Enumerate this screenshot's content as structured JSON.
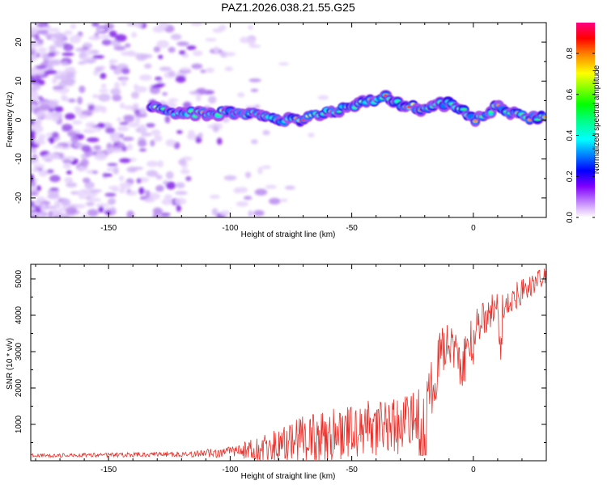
{
  "title": "PAZ1.2026.038.21.55.G25",
  "chart_data": [
    {
      "type": "heatmap",
      "name": "spectrogram",
      "xlabel": "Height of straight line (km)",
      "ylabel": "Frequency (Hz)",
      "xlim": [
        -182,
        30
      ],
      "ylim": [
        -25,
        25
      ],
      "xticks": [
        "-150",
        "-100",
        "-50",
        "0"
      ],
      "xtick_values": [
        -150,
        -100,
        -50,
        0
      ],
      "yticks": [
        "-20",
        "-10",
        "0",
        "10",
        "20"
      ],
      "ytick_values": [
        -20,
        -10,
        0,
        10,
        20
      ],
      "colorbar": {
        "label": "Normalized spectral amplitude",
        "range": [
          0,
          0.95
        ],
        "ticks": [
          "0.0",
          "0.2",
          "0.4",
          "0.6",
          "0.8"
        ],
        "tick_values": [
          0,
          0.2,
          0.4,
          0.6,
          0.8
        ]
      },
      "ridge_frequency": {
        "x": [
          -130,
          -120,
          -110,
          -100,
          -90,
          -80,
          -70,
          -60,
          -50,
          -40,
          -35,
          -30,
          -20,
          -15,
          -10,
          -5,
          0,
          5,
          10,
          15,
          20,
          25,
          30
        ],
        "y": [
          3,
          2,
          1.5,
          2,
          1.5,
          0,
          0.5,
          2,
          3.5,
          5,
          6,
          4,
          3,
          4,
          4,
          3,
          0,
          1,
          4,
          2,
          1,
          0.5,
          0.5
        ]
      }
    },
    {
      "type": "line",
      "name": "snr",
      "xlabel": "Height of straight line (km)",
      "ylabel": "SNR (10 * v/v)",
      "xlim": [
        -182,
        30
      ],
      "ylim": [
        0,
        5400
      ],
      "xticks": [
        "-150",
        "-100",
        "-50",
        "0"
      ],
      "xtick_values": [
        -150,
        -100,
        -50,
        0
      ],
      "yticks": [
        "1000",
        "2000",
        "3000",
        "4000",
        "5000"
      ],
      "ytick_values": [
        1000,
        2000,
        3000,
        4000,
        5000
      ],
      "color": "#e8302a",
      "envelope": {
        "x": [
          -182,
          -150,
          -120,
          -100,
          -90,
          -80,
          -70,
          -60,
          -50,
          -40,
          -30,
          -25,
          -20,
          -15,
          -10,
          -5,
          0,
          5,
          10,
          15,
          20,
          25,
          30
        ],
        "mean": [
          140,
          160,
          180,
          230,
          320,
          420,
          580,
          700,
          800,
          900,
          950,
          1300,
          1500,
          2500,
          3500,
          2400,
          3800,
          3900,
          4300,
          4300,
          4700,
          4900,
          5100
        ],
        "amplitude": [
          50,
          60,
          80,
          150,
          300,
          500,
          650,
          700,
          750,
          800,
          800,
          800,
          900,
          800,
          700,
          700,
          600,
          500,
          500,
          400,
          400,
          300,
          200
        ]
      }
    }
  ]
}
